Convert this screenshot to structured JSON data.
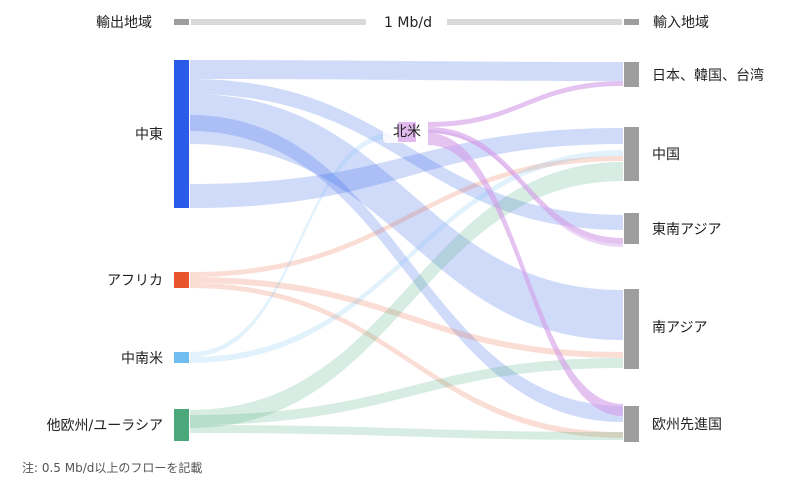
{
  "header": {
    "left_title": "輸出地域",
    "right_title": "輸入地域",
    "scale_label": "1 Mb/d"
  },
  "note": "注: 0.5 Mb/d以上のフローを記載",
  "colors": {
    "middle_east": "#2a5be8",
    "africa": "#e8552a",
    "latin_america": "#6fbdf0",
    "other_eurasia": "#4aa87a",
    "north_america": "#d39be8",
    "importer": "#9e9e9e"
  },
  "chart_data": {
    "type": "sankey",
    "unit": "Mb/d",
    "sources": [
      {
        "id": "middle_east",
        "label": "中東"
      },
      {
        "id": "africa",
        "label": "アフリカ"
      },
      {
        "id": "latin_america",
        "label": "中南米"
      },
      {
        "id": "other_eurasia",
        "label": "他欧州/ユーラシア"
      }
    ],
    "hub": {
      "id": "north_america",
      "label": "北米"
    },
    "targets": [
      {
        "id": "jkt",
        "label": "日本、韓国、台湾"
      },
      {
        "id": "china",
        "label": "中国"
      },
      {
        "id": "sea",
        "label": "東南アジア"
      },
      {
        "id": "south_asia",
        "label": "南アジア"
      },
      {
        "id": "europe",
        "label": "欧州先進国"
      }
    ],
    "flows": [
      {
        "from": "middle_east",
        "to": "jkt",
        "value": 2.0
      },
      {
        "from": "middle_east",
        "to": "sea",
        "value": 1.5
      },
      {
        "from": "middle_east",
        "to": "south_asia",
        "value": 4.8
      },
      {
        "from": "middle_east",
        "to": "europe",
        "value": 0.9
      },
      {
        "from": "middle_east",
        "to": "china",
        "value": 1.6
      },
      {
        "from": "africa",
        "to": "china",
        "value": 0.6
      },
      {
        "from": "africa",
        "to": "south_asia",
        "value": 0.6
      },
      {
        "from": "africa",
        "to": "europe",
        "value": 0.6
      },
      {
        "from": "latin_america",
        "to": "china",
        "value": 0.6
      },
      {
        "from": "latin_america",
        "to": "north_america",
        "value": 0.5
      },
      {
        "from": "other_eurasia",
        "to": "china",
        "value": 2.0
      },
      {
        "from": "other_eurasia",
        "to": "south_asia",
        "value": 1.2
      },
      {
        "from": "other_eurasia",
        "to": "europe",
        "value": 0.8
      },
      {
        "from": "north_america",
        "to": "jkt",
        "value": 0.5
      },
      {
        "from": "north_america",
        "to": "sea",
        "value": 0.5
      },
      {
        "from": "north_america",
        "to": "europe",
        "value": 1.3
      },
      {
        "from": "north_america",
        "to": "china",
        "value": 0.3
      }
    ]
  }
}
